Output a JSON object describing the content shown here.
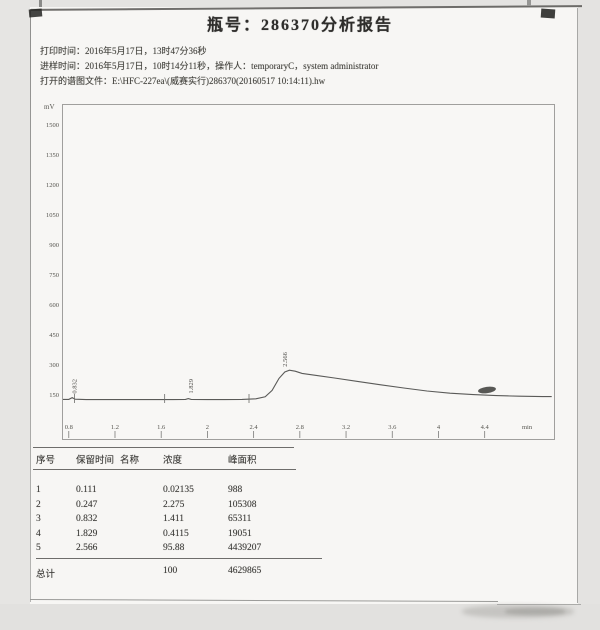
{
  "report": {
    "title": "瓶号：286370分析报告",
    "header_lines": [
      "打印时间：2016年5月17日，13时47分36秒",
      "进样时间：2016年5月17日，10时14分11秒，操作人：temporaryC，system administrator",
      "打开的谱图文件：E:\\HFC-227ea\\(威赛实行)286370(20160517 10:14:11).hw"
    ]
  },
  "chart_data": {
    "type": "line",
    "title": "",
    "xlabel": "min",
    "ylabel": "mV",
    "xlim": [
      0.75,
      5.0
    ],
    "ylim": [
      -65,
      1605
    ],
    "grid": false,
    "x_ticks": [
      "0.8",
      "1.2",
      "1.6",
      "2",
      "2.4",
      "2.8",
      "3.2",
      "3.6",
      "4",
      "4.4"
    ],
    "y_ticks": [
      "1500",
      "1350",
      "1200",
      "1050",
      "900",
      "750",
      "600",
      "450",
      "300",
      "150"
    ],
    "baseline_marks": [
      0.85,
      1.63,
      2.36
    ],
    "peaks": [
      {
        "rt": "0.832",
        "t": 0.865,
        "label_v": 162
      },
      {
        "rt": "1.829",
        "t": 1.875,
        "label_v": 162
      },
      {
        "rt": "2.566",
        "t": 2.69,
        "label_v": 296
      }
    ],
    "series": [
      {
        "name": "detector-signal",
        "points": [
          [
            0.75,
            133
          ],
          [
            0.8,
            133
          ],
          [
            0.83,
            142
          ],
          [
            0.855,
            134
          ],
          [
            0.95,
            132
          ],
          [
            1.1,
            132
          ],
          [
            1.3,
            132
          ],
          [
            1.5,
            132
          ],
          [
            1.7,
            132
          ],
          [
            1.81,
            133
          ],
          [
            1.835,
            137
          ],
          [
            1.86,
            133
          ],
          [
            2.0,
            132
          ],
          [
            2.15,
            132
          ],
          [
            2.3,
            133
          ],
          [
            2.42,
            136
          ],
          [
            2.5,
            146
          ],
          [
            2.56,
            178
          ],
          [
            2.62,
            238
          ],
          [
            2.67,
            270
          ],
          [
            2.71,
            279
          ],
          [
            2.76,
            274
          ],
          [
            2.82,
            263
          ],
          [
            2.95,
            252
          ],
          [
            3.1,
            240
          ],
          [
            3.3,
            223
          ],
          [
            3.5,
            206
          ],
          [
            3.7,
            190
          ],
          [
            3.9,
            175
          ],
          [
            4.1,
            164
          ],
          [
            4.3,
            157
          ],
          [
            4.5,
            152
          ],
          [
            4.7,
            149
          ],
          [
            4.9,
            147
          ],
          [
            4.98,
            147
          ]
        ]
      }
    ]
  },
  "table": {
    "headers": [
      "序号",
      "保留时间",
      "名称",
      "浓度",
      "峰面积"
    ],
    "rows": [
      [
        "1",
        "0.111",
        "",
        "0.02135",
        "988"
      ],
      [
        "2",
        "0.247",
        "",
        "2.275",
        "105308"
      ],
      [
        "3",
        "0.832",
        "",
        "1.411",
        "65311"
      ],
      [
        "4",
        "1.829",
        "",
        "0.4115",
        "19051"
      ],
      [
        "5",
        "2.566",
        "",
        "95.88",
        "4439207"
      ]
    ],
    "total": {
      "label": "总计",
      "concentration": "100",
      "area": "4629865"
    }
  }
}
